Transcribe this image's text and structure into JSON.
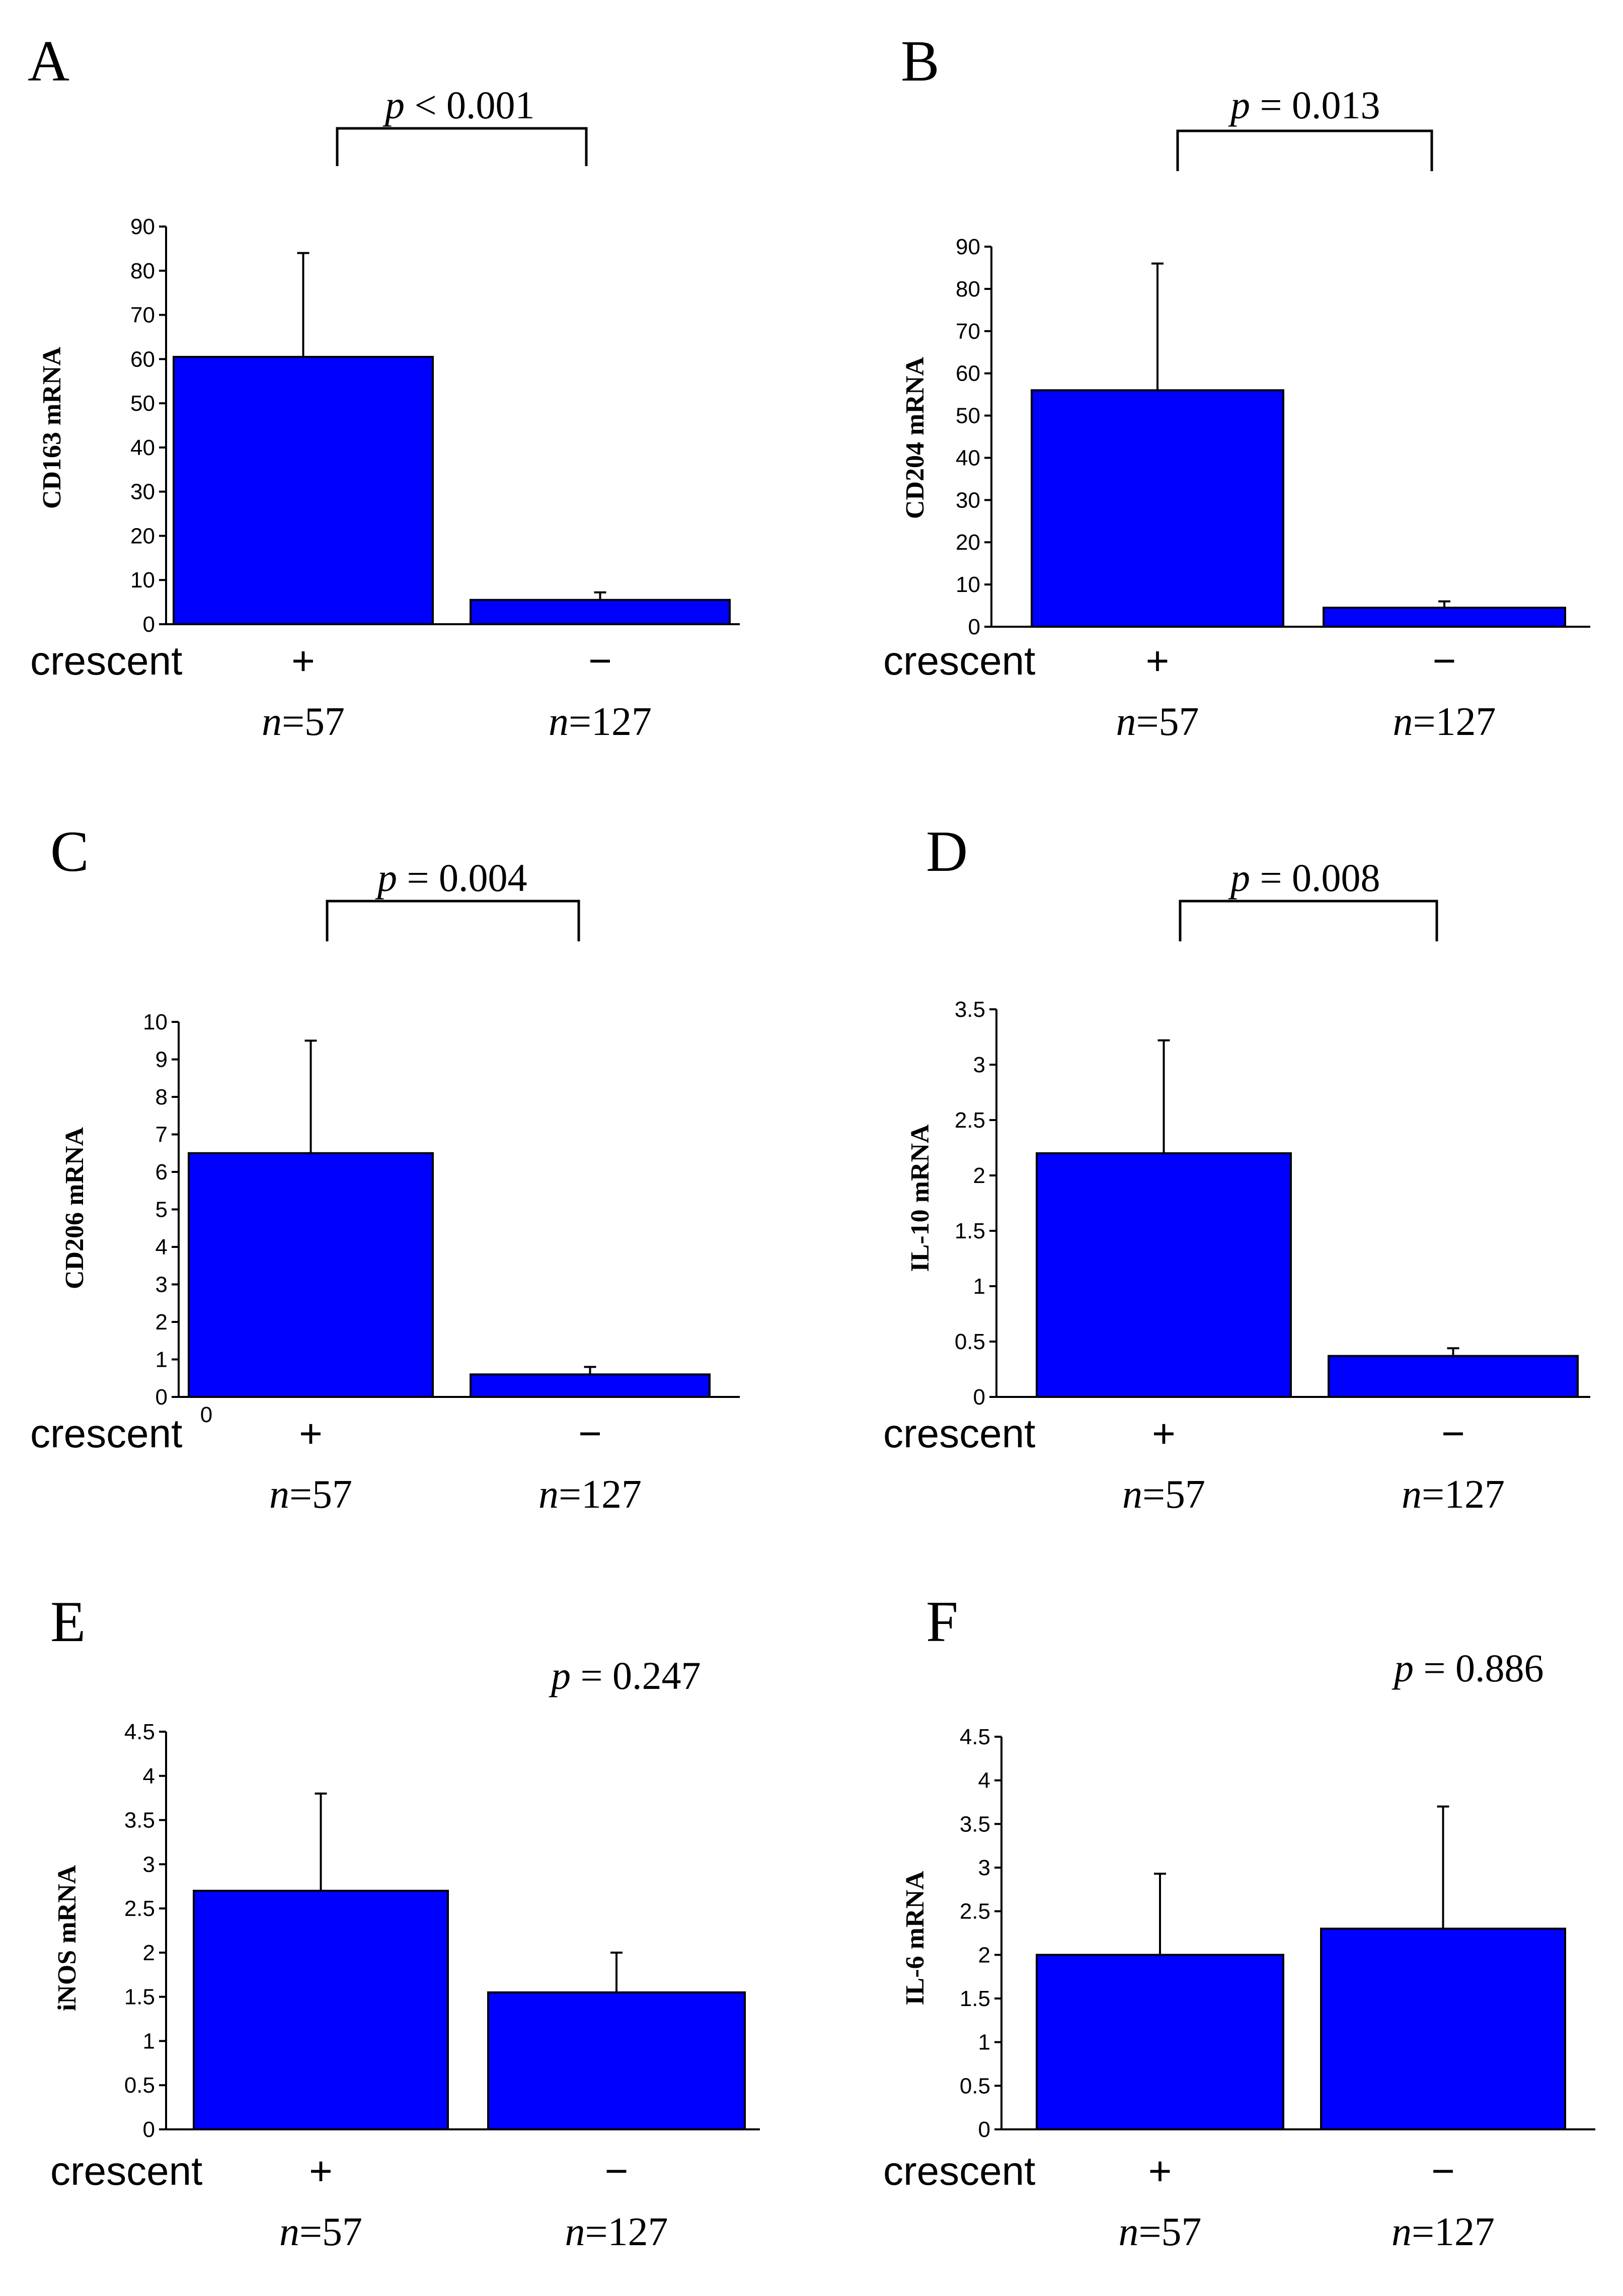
{
  "figure": {
    "bar_color": "#0000ff",
    "category_row_label": "crescent"
  },
  "chart_data": [
    {
      "panel": "A",
      "type": "bar",
      "ylabel": "CD163 mRNA",
      "ylim": [
        0,
        90
      ],
      "yticks": [
        0,
        10,
        20,
        30,
        40,
        50,
        60,
        70,
        80,
        90
      ],
      "tick_labels": [
        "0",
        "10",
        "20",
        "30",
        "40",
        "50",
        "60",
        "70",
        "80",
        "90"
      ],
      "categories": [
        "+",
        "−"
      ],
      "n_labels": [
        {
          "var": "n",
          "val": "=57"
        },
        {
          "var": "n",
          "val": "=127"
        }
      ],
      "values": [
        60.5,
        5.5
      ],
      "error_upper": [
        84,
        7.2
      ],
      "p_value": {
        "var": "p",
        "text": " < 0.001"
      },
      "bracket": true
    },
    {
      "panel": "B",
      "type": "bar",
      "ylabel": "CD204 mRNA",
      "ylim": [
        0,
        90
      ],
      "yticks": [
        0,
        10,
        20,
        30,
        40,
        50,
        60,
        70,
        80,
        90
      ],
      "tick_labels": [
        "0",
        "10",
        "20",
        "30",
        "40",
        "50",
        "60",
        "70",
        "80",
        "90"
      ],
      "categories": [
        "+",
        "−"
      ],
      "n_labels": [
        {
          "var": "n",
          "val": "=57"
        },
        {
          "var": "n",
          "val": "=127"
        }
      ],
      "values": [
        56,
        4.5
      ],
      "error_upper": [
        86,
        6
      ],
      "p_value": {
        "var": "p",
        "text": " = 0.013"
      },
      "bracket": true
    },
    {
      "panel": "C",
      "type": "bar",
      "ylabel": "CD206 mRNA",
      "ylim": [
        0,
        10
      ],
      "yticks": [
        0,
        1,
        2,
        3,
        4,
        5,
        6,
        7,
        8,
        9,
        10
      ],
      "tick_labels": [
        "0",
        "1",
        "2",
        "3",
        "4",
        "5",
        "6",
        "7",
        "8",
        "9",
        "10"
      ],
      "categories": [
        "+",
        "−"
      ],
      "n_labels": [
        {
          "var": "n",
          "val": "=57"
        },
        {
          "var": "n",
          "val": "=127"
        }
      ],
      "values": [
        6.5,
        0.6
      ],
      "error_upper": [
        9.5,
        0.8
      ],
      "p_value": {
        "var": "p",
        "text": " = 0.004"
      },
      "bracket": true
    },
    {
      "panel": "D",
      "type": "bar",
      "ylabel": "IL-10 mRNA",
      "ylim": [
        0,
        3.5
      ],
      "yticks": [
        0,
        0.5,
        1,
        1.5,
        2,
        2.5,
        3,
        3.5
      ],
      "tick_labels": [
        "0",
        "0.5",
        "1",
        "1.5",
        "2",
        "2.5",
        "3",
        "3.5"
      ],
      "categories": [
        "+",
        "−"
      ],
      "n_labels": [
        {
          "var": "n",
          "val": "=57"
        },
        {
          "var": "n",
          "val": "=127"
        }
      ],
      "values": [
        2.2,
        0.37
      ],
      "error_upper": [
        3.22,
        0.44
      ],
      "p_value": {
        "var": "p",
        "text": " = 0.008"
      },
      "bracket": true
    },
    {
      "panel": "E",
      "type": "bar",
      "ylabel": "iNOS mRNA",
      "ylim": [
        0,
        4.5
      ],
      "yticks": [
        0,
        0.5,
        1,
        1.5,
        2,
        2.5,
        3,
        3.5,
        4,
        4.5
      ],
      "tick_labels": [
        "0",
        "0.5",
        "1",
        "1.5",
        "2",
        "2.5",
        "3",
        "3.5",
        "4",
        "4.5"
      ],
      "categories": [
        "+",
        "−"
      ],
      "n_labels": [
        {
          "var": "n",
          "val": "=57"
        },
        {
          "var": "n",
          "val": "=127"
        }
      ],
      "values": [
        2.7,
        1.55
      ],
      "error_upper": [
        3.8,
        2.0
      ],
      "p_value": {
        "var": "p",
        "text": " = 0.247"
      },
      "bracket": false
    },
    {
      "panel": "F",
      "type": "bar",
      "ylabel": "IL-6 mRNA",
      "ylim": [
        0,
        4.5
      ],
      "yticks": [
        0,
        0.5,
        1,
        1.5,
        2,
        2.5,
        3,
        3.5,
        4,
        4.5
      ],
      "tick_labels": [
        "0",
        "0.5",
        "1",
        "1.5",
        "2",
        "2.5",
        "3",
        "3.5",
        "4",
        "4.5"
      ],
      "categories": [
        "+",
        "−"
      ],
      "n_labels": [
        {
          "var": "n",
          "val": "=57"
        },
        {
          "var": "n",
          "val": "=127"
        }
      ],
      "values": [
        2.0,
        2.3
      ],
      "error_upper": [
        2.93,
        3.7
      ],
      "p_value": {
        "var": "p",
        "text": " = 0.886"
      },
      "bracket": false
    }
  ]
}
